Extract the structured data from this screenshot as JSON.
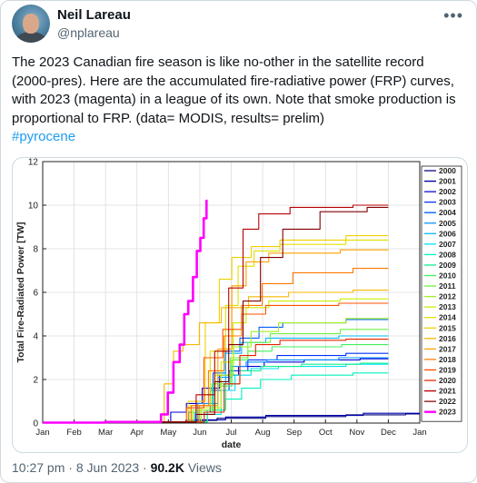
{
  "author": {
    "name": "Neil Lareau",
    "handle": "@nplareau"
  },
  "menu_icon": "more-horizontal-icon",
  "tweet": {
    "text": "The 2023 Canadian fire season is like no-other in the satellite record (2000-pres). Here are the accumulated fire-radiative power (FRP) curves, with 2023 (magenta) in a league of its own. Note that smoke production is proportional to FRP. (data= MODIS, results= prelim)",
    "hashtag": "#pyrocene"
  },
  "footer": {
    "time": "10:27 pm",
    "sep1": "·",
    "date": "8 Jun 2023",
    "sep2": "·",
    "views_count": "90.2K",
    "views_label": "Views"
  },
  "chart_data": {
    "type": "line",
    "xlabel": "date",
    "ylabel": "Total Fire-Radiated Power [TW]",
    "ylim": [
      0,
      12
    ],
    "xlim": [
      1,
      13
    ],
    "y_ticks": [
      0,
      2,
      4,
      6,
      8,
      10,
      12
    ],
    "x_tick_labels": [
      "Jan",
      "Feb",
      "Mar",
      "Apr",
      "May",
      "Jun",
      "Jul",
      "Aug",
      "Sep",
      "Oct",
      "Nov",
      "Dec",
      "Jan"
    ],
    "grid": true,
    "legend_placement": "right",
    "x_unit_note": "x values are month positions (1 = Jan 1, 13 = next Jan 1)",
    "series": [
      {
        "name": "2000",
        "color": "#000080",
        "points": [
          [
            1,
            0.02
          ],
          [
            5,
            0.05
          ],
          [
            6,
            0.12
          ],
          [
            7,
            0.22
          ],
          [
            9,
            0.3
          ],
          [
            12,
            0.38
          ],
          [
            13,
            0.42
          ]
        ]
      },
      {
        "name": "2001",
        "color": "#0000a8",
        "points": [
          [
            1,
            0.02
          ],
          [
            5,
            0.04
          ],
          [
            6.6,
            0.15
          ],
          [
            7,
            0.28
          ],
          [
            9,
            0.35
          ],
          [
            13,
            0.45
          ]
        ]
      },
      {
        "name": "2002",
        "color": "#0000d8",
        "points": [
          [
            1,
            0.02
          ],
          [
            4.8,
            0.05
          ],
          [
            5.3,
            0.5
          ],
          [
            5.8,
            0.9
          ],
          [
            6.3,
            1.6
          ],
          [
            6.9,
            2.2
          ],
          [
            7.5,
            2.6
          ],
          [
            8.5,
            2.8
          ],
          [
            10,
            2.9
          ],
          [
            12,
            2.95
          ]
        ]
      },
      {
        "name": "2003",
        "color": "#0030ff",
        "points": [
          [
            1,
            0.02
          ],
          [
            5.2,
            0.05
          ],
          [
            6.0,
            0.5
          ],
          [
            6.6,
            1.5
          ],
          [
            7.2,
            2.4
          ],
          [
            7.8,
            2.9
          ],
          [
            9,
            3.1
          ],
          [
            12,
            3.2
          ]
        ]
      },
      {
        "name": "2004",
        "color": "#0060ff",
        "points": [
          [
            1,
            0.02
          ],
          [
            5.5,
            0.05
          ],
          [
            6.2,
            0.6
          ],
          [
            6.6,
            2.3
          ],
          [
            7.0,
            3.3
          ],
          [
            7.5,
            3.9
          ],
          [
            8.2,
            4.4
          ],
          [
            9,
            4.6
          ],
          [
            12,
            4.75
          ]
        ]
      },
      {
        "name": "2005",
        "color": "#0090ff",
        "points": [
          [
            1,
            0.02
          ],
          [
            5.5,
            0.05
          ],
          [
            6.3,
            0.9
          ],
          [
            6.8,
            2.1
          ],
          [
            7.2,
            2.6
          ],
          [
            7.7,
            2.8
          ],
          [
            8.5,
            2.9
          ],
          [
            12,
            3.0
          ]
        ]
      },
      {
        "name": "2006",
        "color": "#00b8ff",
        "points": [
          [
            1,
            0.02
          ],
          [
            5.4,
            0.05
          ],
          [
            6.2,
            0.5
          ],
          [
            6.6,
            1.8
          ],
          [
            7.0,
            3.2
          ],
          [
            7.6,
            3.7
          ],
          [
            8.5,
            3.9
          ],
          [
            12,
            4.0
          ]
        ]
      },
      {
        "name": "2007",
        "color": "#00e0f0",
        "points": [
          [
            1,
            0.02
          ],
          [
            5.6,
            0.05
          ],
          [
            6.4,
            0.4
          ],
          [
            6.9,
            1.5
          ],
          [
            7.3,
            2.2
          ],
          [
            7.9,
            2.5
          ],
          [
            9,
            2.6
          ],
          [
            12,
            2.7
          ]
        ]
      },
      {
        "name": "2008",
        "color": "#00f0c0",
        "points": [
          [
            1,
            0.02
          ],
          [
            5.8,
            0.05
          ],
          [
            6.6,
            0.6
          ],
          [
            7.0,
            1.1
          ],
          [
            7.6,
            1.6
          ],
          [
            8.2,
            2.0
          ],
          [
            9.5,
            2.2
          ],
          [
            12,
            2.3
          ]
        ]
      },
      {
        "name": "2009",
        "color": "#10f090",
        "points": [
          [
            1,
            0.02
          ],
          [
            5.8,
            0.05
          ],
          [
            6.6,
            0.6
          ],
          [
            7.0,
            1.8
          ],
          [
            7.5,
            2.4
          ],
          [
            8.3,
            2.6
          ],
          [
            10,
            2.7
          ],
          [
            12,
            2.75
          ]
        ]
      },
      {
        "name": "2010",
        "color": "#40f060",
        "points": [
          [
            1,
            0.02
          ],
          [
            5.6,
            0.05
          ],
          [
            6.3,
            0.6
          ],
          [
            6.8,
            1.7
          ],
          [
            7.2,
            2.9
          ],
          [
            7.8,
            3.3
          ],
          [
            8.7,
            3.5
          ],
          [
            12,
            3.6
          ]
        ]
      },
      {
        "name": "2011",
        "color": "#70f040",
        "points": [
          [
            1,
            0.02
          ],
          [
            5.4,
            0.05
          ],
          [
            6.0,
            0.5
          ],
          [
            6.7,
            1.8
          ],
          [
            7.2,
            3.0
          ],
          [
            7.8,
            3.7
          ],
          [
            8.6,
            4.1
          ],
          [
            12,
            4.3
          ]
        ]
      },
      {
        "name": "2012",
        "color": "#a0f020",
        "points": [
          [
            1,
            0.02
          ],
          [
            5.4,
            0.05
          ],
          [
            6.1,
            0.6
          ],
          [
            6.8,
            2.2
          ],
          [
            7.3,
            3.5
          ],
          [
            7.9,
            4.2
          ],
          [
            9,
            4.6
          ],
          [
            12,
            4.8
          ]
        ]
      },
      {
        "name": "2013",
        "color": "#c8f000",
        "points": [
          [
            1,
            0.02
          ],
          [
            5.6,
            0.05
          ],
          [
            6.4,
            0.7
          ],
          [
            6.9,
            2.8
          ],
          [
            7.2,
            4.6
          ],
          [
            7.7,
            5.3
          ],
          [
            8.6,
            5.6
          ],
          [
            12,
            5.7
          ]
        ]
      },
      {
        "name": "2014",
        "color": "#e0e000",
        "points": [
          [
            1,
            0.02
          ],
          [
            5.3,
            0.05
          ],
          [
            6.0,
            0.8
          ],
          [
            6.6,
            3.3
          ],
          [
            7.0,
            5.4
          ],
          [
            7.4,
            7.2
          ],
          [
            8.0,
            7.9
          ],
          [
            9,
            8.2
          ],
          [
            12,
            8.4
          ]
        ]
      },
      {
        "name": "2015",
        "color": "#f0d000",
        "points": [
          [
            1,
            0.02
          ],
          [
            5.3,
            0.05
          ],
          [
            5.9,
            1.0
          ],
          [
            6.4,
            4.6
          ],
          [
            6.8,
            6.6
          ],
          [
            7.2,
            7.6
          ],
          [
            8,
            8.1
          ],
          [
            9,
            8.4
          ],
          [
            12,
            8.6
          ]
        ]
      },
      {
        "name": "2016",
        "color": "#f8b800",
        "points": [
          [
            1,
            0.02
          ],
          [
            4.7,
            0.05
          ],
          [
            5.0,
            1.8
          ],
          [
            5.3,
            3.3
          ],
          [
            5.6,
            3.6
          ],
          [
            6.3,
            4.6
          ],
          [
            7,
            5.3
          ],
          [
            8,
            5.8
          ],
          [
            9.5,
            6.0
          ],
          [
            12,
            6.1
          ]
        ]
      },
      {
        "name": "2017",
        "color": "#ffa000",
        "points": [
          [
            1,
            0.02
          ],
          [
            5.6,
            0.05
          ],
          [
            6.3,
            0.8
          ],
          [
            6.8,
            3.4
          ],
          [
            7.2,
            6.3
          ],
          [
            7.7,
            7.4
          ],
          [
            8.6,
            7.8
          ],
          [
            12,
            7.95
          ]
        ]
      },
      {
        "name": "2018",
        "color": "#ff7800",
        "points": [
          [
            1,
            0.02
          ],
          [
            5.4,
            0.05
          ],
          [
            6.0,
            0.8
          ],
          [
            6.5,
            2.4
          ],
          [
            7.0,
            4.0
          ],
          [
            7.6,
            5.4
          ],
          [
            8.3,
            6.4
          ],
          [
            9.5,
            6.9
          ],
          [
            12,
            7.1
          ]
        ]
      },
      {
        "name": "2019",
        "color": "#ff5000",
        "points": [
          [
            1,
            0.02
          ],
          [
            5.3,
            0.05
          ],
          [
            5.8,
            0.7
          ],
          [
            6.4,
            3.0
          ],
          [
            7.0,
            4.3
          ],
          [
            7.6,
            5.0
          ],
          [
            8.5,
            5.4
          ],
          [
            12,
            5.5
          ]
        ]
      },
      {
        "name": "2020",
        "color": "#e82000",
        "points": [
          [
            1,
            0.02
          ],
          [
            5.7,
            0.05
          ],
          [
            6.5,
            0.5
          ],
          [
            7.0,
            1.8
          ],
          [
            7.5,
            3.1
          ],
          [
            8.0,
            3.6
          ],
          [
            9,
            3.8
          ],
          [
            12,
            3.85
          ]
        ]
      },
      {
        "name": "2021",
        "color": "#b80000",
        "points": [
          [
            1,
            0.02
          ],
          [
            5.5,
            0.05
          ],
          [
            6.2,
            1.3
          ],
          [
            6.7,
            3.3
          ],
          [
            7.1,
            6.2
          ],
          [
            7.6,
            8.9
          ],
          [
            8.1,
            9.6
          ],
          [
            9.5,
            9.9
          ],
          [
            12,
            10.0
          ]
        ]
      },
      {
        "name": "2022",
        "color": "#800000",
        "points": [
          [
            1,
            0.02
          ],
          [
            5.5,
            0.05
          ],
          [
            6.2,
            0.4
          ],
          [
            6.7,
            1.9
          ],
          [
            7.1,
            3.6
          ],
          [
            7.6,
            5.6
          ],
          [
            8.2,
            7.6
          ],
          [
            9,
            8.9
          ],
          [
            10.5,
            9.7
          ],
          [
            12,
            9.9
          ]
        ]
      },
      {
        "name": "2023",
        "color": "#ff00ff",
        "points": [
          [
            1,
            0.02
          ],
          [
            4.6,
            0.05
          ],
          [
            4.9,
            0.4
          ],
          [
            5.05,
            1.4
          ],
          [
            5.25,
            2.8
          ],
          [
            5.45,
            3.6
          ],
          [
            5.55,
            5.0
          ],
          [
            5.7,
            5.6
          ],
          [
            5.85,
            6.7
          ],
          [
            5.95,
            7.9
          ],
          [
            6.07,
            8.5
          ],
          [
            6.17,
            9.4
          ],
          [
            6.25,
            10.2
          ]
        ]
      }
    ]
  }
}
